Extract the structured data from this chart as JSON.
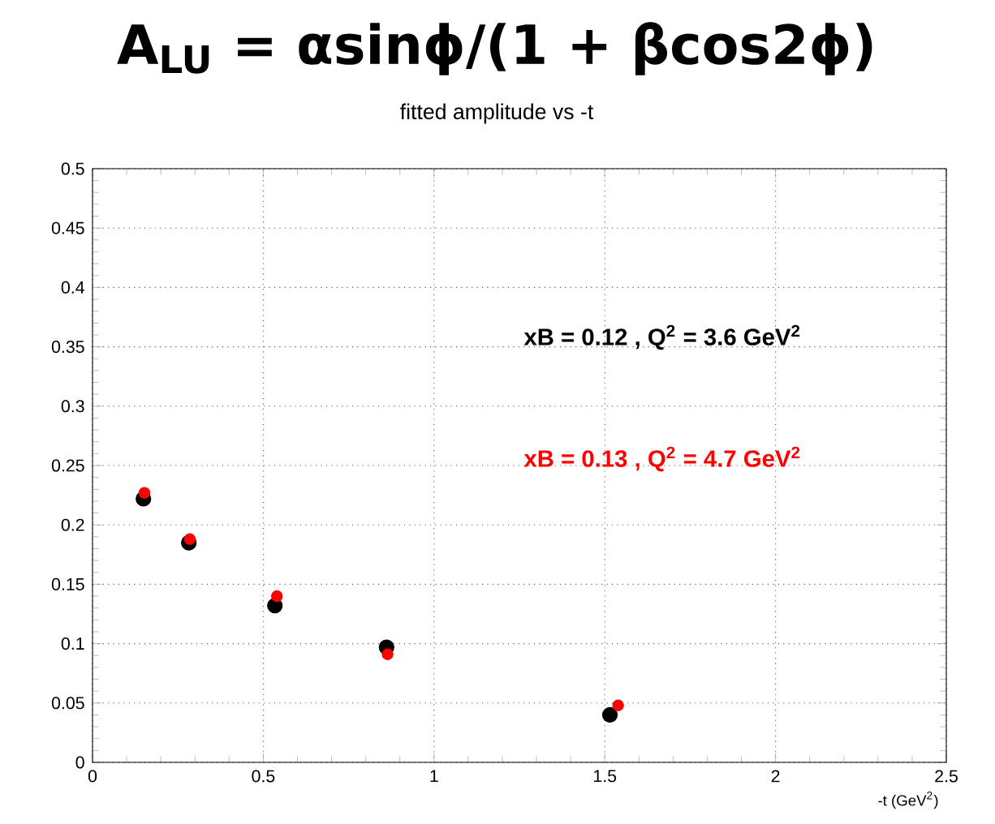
{
  "chart_data": {
    "type": "scatter",
    "title": "A$_{LU}$ = αsinϕ/(1 + βcos2ϕ)",
    "subtitle": "fitted amplitude vs -t",
    "xlabel": "-t (GeV$^{2}$)",
    "series": [
      {
        "name": "xB = 0.12 , Q$^{2}$ = 3.6 GeV$^{2}$",
        "color": "#000000",
        "x": [
          0.149,
          0.282,
          0.534,
          0.861,
          1.515
        ],
        "values": [
          0.222,
          0.185,
          0.132,
          0.097,
          0.04
        ]
      },
      {
        "name": "xB = 0.13 , Q$^{2}$ = 4.7 GeV$^{2}$",
        "color": "#ff0000",
        "x": [
          0.152,
          0.285,
          0.54,
          0.864,
          1.539
        ],
        "values": [
          0.227,
          0.188,
          0.14,
          0.091,
          0.048
        ]
      }
    ],
    "xlim": [
      0,
      2.5
    ],
    "ylim": [
      0,
      0.5
    ],
    "xticks": [
      0,
      0.5,
      1,
      1.5,
      2,
      2.5
    ],
    "yticks": [
      0,
      0.05,
      0.1,
      0.15,
      0.2,
      0.25,
      0.3,
      0.35,
      0.4,
      0.45,
      0.5
    ],
    "grid": true,
    "marker": "circle",
    "legend": false
  }
}
